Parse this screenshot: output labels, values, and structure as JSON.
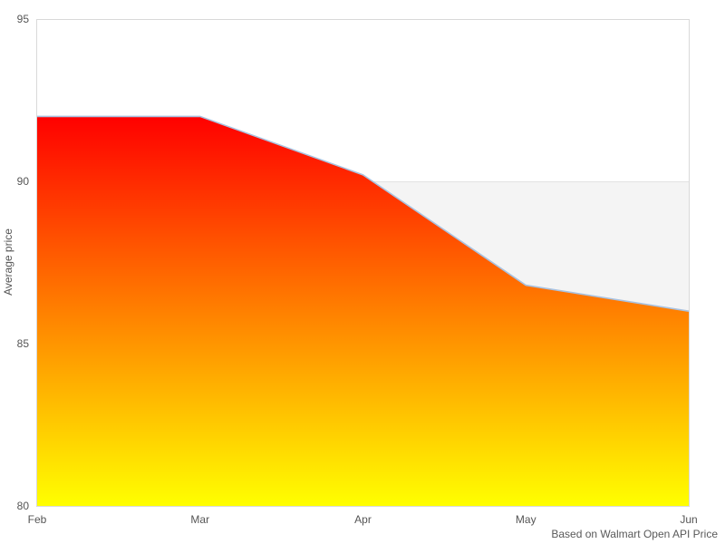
{
  "chart_data": {
    "type": "area",
    "title": "",
    "x": [
      "Feb",
      "Mar",
      "Apr",
      "May",
      "Jun"
    ],
    "series": [
      {
        "name": "Average price",
        "values": [
          92,
          92,
          90.2,
          86.8,
          86
        ]
      }
    ],
    "xlabel": "",
    "ylabel": "Average price",
    "yticks": [
      80,
      85,
      90,
      95
    ],
    "ylim": [
      80,
      95
    ],
    "grid": "off",
    "legend": "none",
    "reference_band": {
      "from": 80,
      "to": 90,
      "color": "#f4f4f4",
      "edge_color": "#e2e2e2"
    },
    "area_gradient_top": "#ff0000",
    "area_gradient_mid": "#ff8000",
    "area_gradient_bottom": "#ffff00",
    "line_color": "#a9c2e0",
    "plot_border_color": "#d9d9d9",
    "caption": "Based on Walmart Open API Price"
  }
}
